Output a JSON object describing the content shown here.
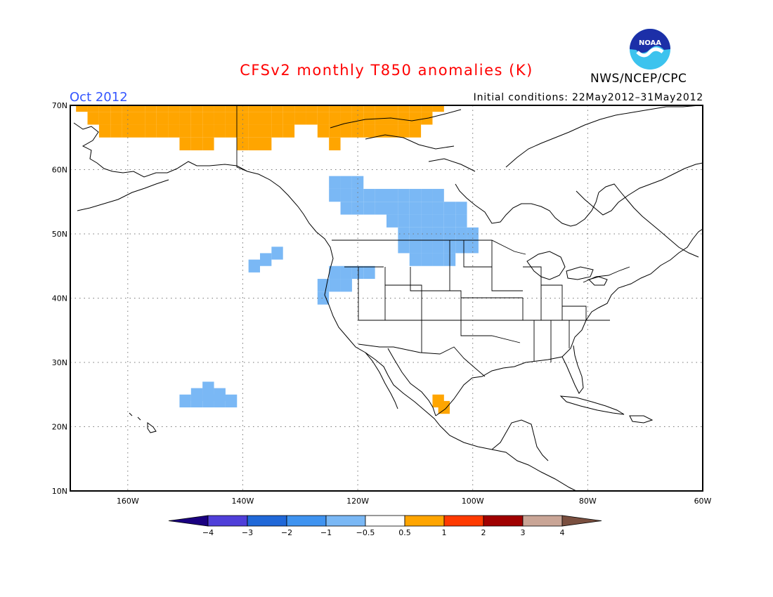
{
  "title": "CFSv2 monthly T850 anomalies (K)",
  "period": "Oct 2012",
  "initial_conditions": "Initial conditions: 22May2012–31May2012",
  "agency": "NWS/NCEP/CPC",
  "logo_text": "NOAA",
  "map": {
    "lon_range": [
      -170,
      -60
    ],
    "lat_range": [
      10,
      70
    ],
    "lat_ticks": [
      "70N",
      "60N",
      "50N",
      "40N",
      "30N",
      "20N",
      "10N"
    ],
    "lon_ticks": [
      "160W",
      "140W",
      "120W",
      "100W",
      "80W",
      "60W"
    ],
    "grid": "dotted",
    "anomaly_regions": [
      {
        "category": "+0.5 to 1",
        "color": "#ffa500",
        "description": "Arctic coast Alaska/Yukon",
        "cells": [
          [
            -168,
            70
          ],
          [
            -166,
            70
          ],
          [
            -164,
            70
          ],
          [
            -162,
            70
          ],
          [
            -160,
            70
          ],
          [
            -158,
            70
          ],
          [
            -156,
            70
          ],
          [
            -154,
            70
          ],
          [
            -152,
            70
          ],
          [
            -150,
            70
          ],
          [
            -148,
            70
          ],
          [
            -146,
            70
          ],
          [
            -144,
            70
          ],
          [
            -142,
            70
          ],
          [
            -140,
            70
          ],
          [
            -138,
            70
          ],
          [
            -136,
            70
          ],
          [
            -134,
            70
          ],
          [
            -132,
            70
          ],
          [
            -130,
            70
          ],
          [
            -128,
            70
          ],
          [
            -126,
            70
          ],
          [
            -124,
            70
          ],
          [
            -122,
            70
          ],
          [
            -120,
            70
          ],
          [
            -118,
            70
          ],
          [
            -116,
            70
          ],
          [
            -114,
            70
          ],
          [
            -112,
            70
          ],
          [
            -110,
            70
          ],
          [
            -108,
            70
          ],
          [
            -106,
            70
          ],
          [
            -166,
            68
          ],
          [
            -164,
            68
          ],
          [
            -162,
            68
          ],
          [
            -160,
            68
          ],
          [
            -158,
            68
          ],
          [
            -156,
            68
          ],
          [
            -154,
            68
          ],
          [
            -152,
            68
          ],
          [
            -150,
            68
          ],
          [
            -148,
            68
          ],
          [
            -146,
            68
          ],
          [
            -144,
            68
          ],
          [
            -142,
            68
          ],
          [
            -140,
            68
          ],
          [
            -138,
            68
          ],
          [
            -136,
            68
          ],
          [
            -134,
            68
          ],
          [
            -132,
            68
          ],
          [
            -130,
            68
          ],
          [
            -128,
            68
          ],
          [
            -126,
            68
          ],
          [
            -124,
            68
          ],
          [
            -122,
            68
          ],
          [
            -120,
            68
          ],
          [
            -118,
            68
          ],
          [
            -116,
            68
          ],
          [
            -114,
            68
          ],
          [
            -112,
            68
          ],
          [
            -110,
            68
          ],
          [
            -108,
            68
          ],
          [
            -164,
            66
          ],
          [
            -162,
            66
          ],
          [
            -160,
            66
          ],
          [
            -158,
            66
          ],
          [
            -156,
            66
          ],
          [
            -154,
            66
          ],
          [
            -152,
            66
          ],
          [
            -150,
            66
          ],
          [
            -148,
            66
          ],
          [
            -146,
            66
          ],
          [
            -144,
            66
          ],
          [
            -142,
            66
          ],
          [
            -140,
            66
          ],
          [
            -138,
            66
          ],
          [
            -136,
            66
          ],
          [
            -134,
            66
          ],
          [
            -132,
            66
          ],
          [
            -126,
            66
          ],
          [
            -124,
            66
          ],
          [
            -122,
            66
          ],
          [
            -120,
            66
          ],
          [
            -118,
            66
          ],
          [
            -116,
            66
          ],
          [
            -114,
            66
          ],
          [
            -112,
            66
          ],
          [
            -110,
            66
          ],
          [
            -150,
            64
          ],
          [
            -148,
            64
          ],
          [
            -146,
            64
          ],
          [
            -140,
            64
          ],
          [
            -138,
            64
          ],
          [
            -136,
            64
          ],
          [
            -124,
            64
          ]
        ]
      },
      {
        "category": "+0.5 to 1",
        "color": "#ffa500",
        "description": "western Mexico",
        "cells": [
          [
            -106,
            24
          ],
          [
            -105,
            23
          ]
        ]
      },
      {
        "category": "-1 to -0.5",
        "color": "#7ab8f5",
        "description": "western Canada / northern Plains",
        "cells": [
          [
            -124,
            58
          ],
          [
            -122,
            58
          ],
          [
            -120,
            58
          ],
          [
            -124,
            56
          ],
          [
            -122,
            56
          ],
          [
            -120,
            56
          ],
          [
            -118,
            56
          ],
          [
            -116,
            56
          ],
          [
            -114,
            56
          ],
          [
            -112,
            56
          ],
          [
            -110,
            56
          ],
          [
            -108,
            56
          ],
          [
            -106,
            56
          ],
          [
            -122,
            54
          ],
          [
            -120,
            54
          ],
          [
            -118,
            54
          ],
          [
            -116,
            54
          ],
          [
            -114,
            54
          ],
          [
            -112,
            54
          ],
          [
            -110,
            54
          ],
          [
            -108,
            54
          ],
          [
            -106,
            54
          ],
          [
            -104,
            54
          ],
          [
            -102,
            54
          ],
          [
            -114,
            52
          ],
          [
            -112,
            52
          ],
          [
            -110,
            52
          ],
          [
            -108,
            52
          ],
          [
            -106,
            52
          ],
          [
            -104,
            52
          ],
          [
            -102,
            52
          ],
          [
            -112,
            50
          ],
          [
            -110,
            50
          ],
          [
            -108,
            50
          ],
          [
            -106,
            50
          ],
          [
            -104,
            50
          ],
          [
            -102,
            50
          ],
          [
            -100,
            50
          ],
          [
            -112,
            48
          ],
          [
            -110,
            48
          ],
          [
            -108,
            48
          ],
          [
            -106,
            48
          ],
          [
            -104,
            48
          ],
          [
            -102,
            48
          ],
          [
            -100,
            48
          ],
          [
            -110,
            46
          ],
          [
            -108,
            46
          ],
          [
            -106,
            46
          ],
          [
            -104,
            46
          ]
        ]
      },
      {
        "category": "-1 to -0.5",
        "color": "#7ab8f5",
        "description": "Pacific NW coast",
        "cells": [
          [
            -124,
            44
          ],
          [
            -122,
            44
          ],
          [
            -120,
            44
          ],
          [
            -118,
            44
          ],
          [
            -126,
            42
          ],
          [
            -124,
            42
          ],
          [
            -122,
            42
          ],
          [
            -126,
            40
          ]
        ]
      },
      {
        "category": "-1 to -0.5",
        "color": "#7ab8f5",
        "description": "NE Pacific",
        "cells": [
          [
            -134,
            47
          ],
          [
            -136,
            46
          ],
          [
            -138,
            45
          ]
        ]
      },
      {
        "category": "-1 to -0.5",
        "color": "#7ab8f5",
        "description": "subtropical Pacific",
        "cells": [
          [
            -146,
            26
          ],
          [
            -148,
            25
          ],
          [
            -146,
            25
          ],
          [
            -144,
            25
          ],
          [
            -150,
            24
          ],
          [
            -148,
            24
          ],
          [
            -146,
            24
          ],
          [
            -144,
            24
          ],
          [
            -142,
            24
          ]
        ]
      }
    ]
  },
  "colorbar": {
    "labels": [
      "-4",
      "-3",
      "-2",
      "-1",
      "-0.5",
      "0.5",
      "1",
      "2",
      "3",
      "4"
    ],
    "colors": [
      "#1a0080",
      "#4f3fd9",
      "#2068d8",
      "#3f93f0",
      "#7ab8f5",
      "#ffffff",
      "#ffa500",
      "#ff3a00",
      "#a00000",
      "#c9a596",
      "#7a4f3f"
    ]
  }
}
